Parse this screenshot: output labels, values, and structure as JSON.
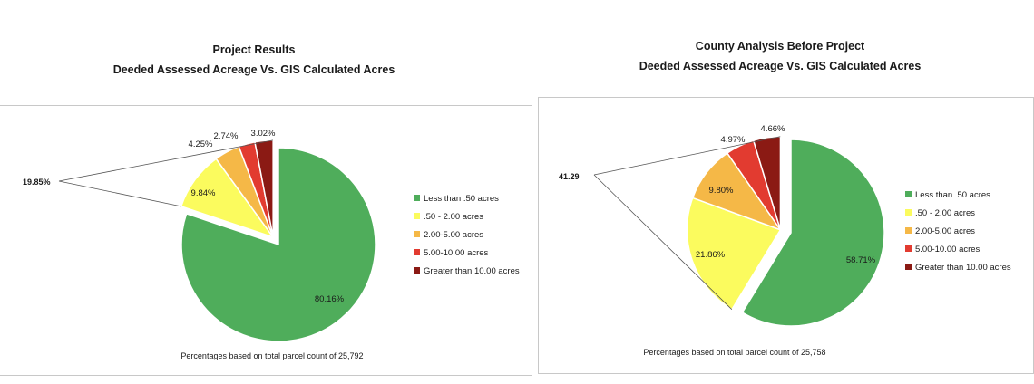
{
  "charts": [
    {
      "title": [
        "Project Results",
        "Deeded Assessed Acreage Vs. GIS Calculated Acres"
      ],
      "note": "Percentages based on total parcel count of 25,792",
      "callout": "19.85%"
    },
    {
      "title": [
        "County Analysis Before Project",
        "Deeded Assessed Acreage Vs. GIS Calculated Acres"
      ],
      "note": "Percentages based on total parcel count of 25,758",
      "callout": "41.29"
    }
  ],
  "chart_data": [
    {
      "type": "pie",
      "title": "Project Results Deeded Assessed Acreage Vs. GIS Calculated Acres",
      "categories": [
        "Less than .50 acres",
        ".50 - 2.00 acres",
        "2.00-5.00 acres",
        "5.00-10.00 acres",
        "Greater than 10.00 acres"
      ],
      "values": [
        80.16,
        9.84,
        4.25,
        2.74,
        3.02
      ],
      "value_labels": [
        "80.16%",
        "9.84%",
        "4.25%",
        "2.74%",
        "3.02%"
      ],
      "colors": [
        "#4fad5b",
        "#fbfb5e",
        "#f5b847",
        "#e23b30",
        "#8b1a14"
      ],
      "exploded_group_label": "19.85%",
      "legend": "right"
    },
    {
      "type": "pie",
      "title": "County Analysis Before Project Deeded Assessed Acreage Vs. GIS Calculated Acres",
      "categories": [
        "Less than .50 acres",
        ".50 - 2.00 acres",
        "2.00-5.00 acres",
        "5.00-10.00 acres",
        "Greater than 10.00 acres"
      ],
      "values": [
        58.71,
        21.86,
        9.8,
        4.97,
        4.66
      ],
      "value_labels": [
        "58.71%",
        "21.86%",
        "9.80%",
        "4.97%",
        "4.66%"
      ],
      "colors": [
        "#4fad5b",
        "#fbfb5e",
        "#f5b847",
        "#e23b30",
        "#8b1a14"
      ],
      "exploded_group_label": "41.29",
      "legend": "right"
    }
  ]
}
